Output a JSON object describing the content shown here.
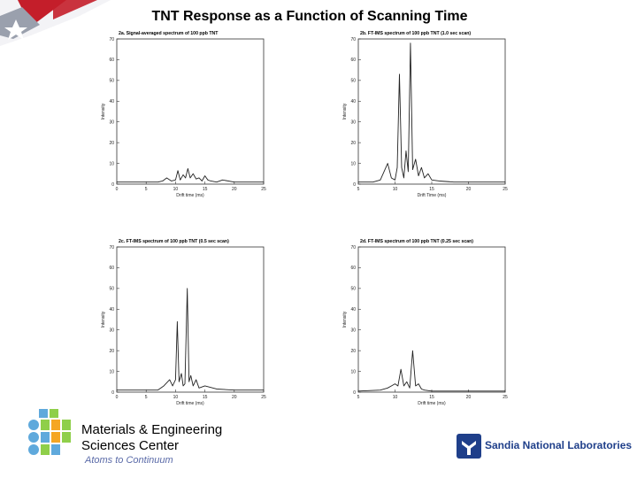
{
  "slide": {
    "title": "TNT Response as a Function of Scanning Time",
    "center_name_line1": "Materials & Engineering",
    "center_name_line2": "Sciences Center",
    "tagline": "Atoms to Continuum",
    "sandia_name": "Sandia National Laboratories"
  },
  "chart_data": [
    {
      "type": "line",
      "title": "2a. Signal-averaged spectrum of 100 ppb TNT",
      "xlabel": "Drift time (ms)",
      "ylabel": "Intensity",
      "xlim": [
        0,
        25
      ],
      "ylim": [
        0,
        70
      ],
      "xticks": [
        0,
        5,
        10,
        15,
        20,
        25
      ],
      "yticks": [
        0,
        10,
        20,
        30,
        40,
        50,
        60,
        70
      ],
      "x": [
        0,
        7,
        7.8,
        8.5,
        9.3,
        10,
        10.4,
        10.8,
        11.3,
        11.7,
        12.1,
        12.5,
        13,
        13.5,
        14,
        14.5,
        15,
        15.5,
        16,
        17,
        18,
        20,
        25
      ],
      "y": [
        1,
        1,
        1.5,
        3,
        1.5,
        2,
        6.5,
        2,
        4.5,
        3,
        7.5,
        3,
        5,
        2.5,
        3,
        1.5,
        4,
        2,
        1.5,
        1,
        2,
        1,
        1
      ]
    },
    {
      "type": "line",
      "title": "2b. FT-IMS spectrum of 100 ppb TNT (1.0 sec scan)",
      "xlabel": "Drift Time (ms)",
      "ylabel": "Intensity",
      "xlim": [
        5,
        25
      ],
      "ylim": [
        0,
        70
      ],
      "xticks": [
        5,
        10,
        15,
        20,
        25
      ],
      "yticks": [
        0,
        10,
        20,
        30,
        40,
        50,
        60,
        70
      ],
      "x": [
        5,
        7,
        8,
        9,
        9.5,
        10,
        10.3,
        10.6,
        10.9,
        11.2,
        11.5,
        11.8,
        12.1,
        12.4,
        12.8,
        13.2,
        13.6,
        14,
        14.5,
        15,
        16,
        18,
        20,
        25
      ],
      "y": [
        1,
        1,
        2,
        10,
        3,
        2,
        8,
        53,
        8,
        3,
        16,
        6,
        68,
        7,
        12,
        4,
        8,
        3,
        5,
        2,
        1.5,
        1,
        1,
        1
      ]
    },
    {
      "type": "line",
      "title": "2c. FT-IMS spectrum of 100 ppb TNT (0.5 sec scan)",
      "xlabel": "Drift time (ms)",
      "ylabel": "Intensity",
      "xlim": [
        0,
        25
      ],
      "ylim": [
        0,
        70
      ],
      "xticks": [
        0,
        5,
        10,
        15,
        20,
        25
      ],
      "yticks": [
        0,
        10,
        20,
        30,
        40,
        50,
        60,
        70
      ],
      "x": [
        0,
        7,
        8,
        9,
        9.5,
        10,
        10.3,
        10.6,
        11,
        11.3,
        11.6,
        12,
        12.3,
        12.6,
        13,
        13.5,
        14,
        15,
        17,
        20,
        25
      ],
      "y": [
        1,
        1,
        3,
        6,
        3,
        6,
        34,
        5,
        9,
        3,
        4,
        50,
        5,
        8,
        3,
        6,
        2,
        3,
        1.5,
        1,
        1
      ]
    },
    {
      "type": "line",
      "title": "2d. FT-IMS spectrum of 100 ppb TNT (0.25 sec scan)",
      "xlabel": "Drift time (ms)",
      "ylabel": "Intensity",
      "xlim": [
        5,
        25
      ],
      "ylim": [
        0,
        70
      ],
      "xticks": [
        5,
        10,
        15,
        20,
        25
      ],
      "yticks": [
        0,
        10,
        20,
        30,
        40,
        50,
        60,
        70
      ],
      "x": [
        5,
        8,
        9,
        9.5,
        10,
        10.4,
        10.8,
        11.2,
        11.6,
        12,
        12.4,
        12.8,
        13.2,
        13.6,
        14,
        15,
        18,
        25
      ],
      "y": [
        0.5,
        1,
        2,
        3,
        4,
        3,
        11,
        3,
        5,
        2,
        20,
        3,
        4,
        1.5,
        1,
        0.5,
        0.5,
        0.5
      ]
    }
  ],
  "colors": {
    "line": "#222222",
    "axis": "#333333",
    "title_text": "#000000",
    "tagline": "#5a6aa8",
    "sandia_blue": "#1f3f8a",
    "logo_blue": "#5fa9dc",
    "logo_green": "#8fcf4a",
    "logo_orange": "#f5a623"
  }
}
